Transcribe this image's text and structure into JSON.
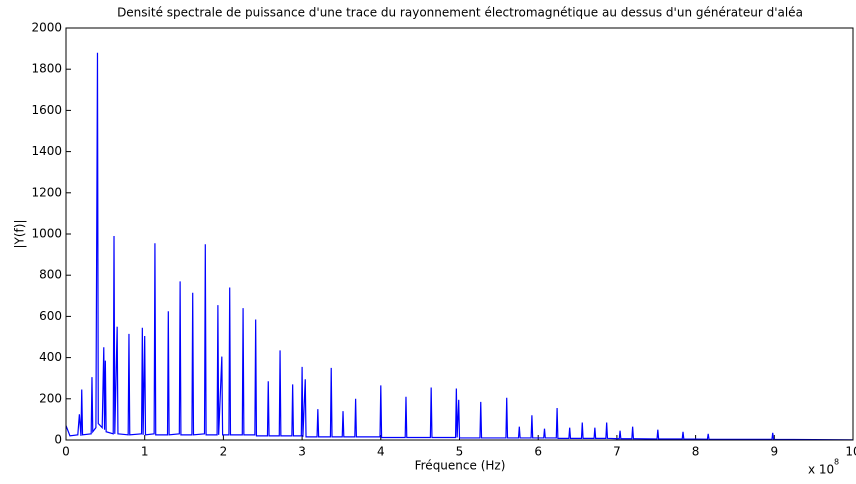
{
  "chart_data": {
    "type": "line",
    "title": "Densité spectrale de puissance d'une trace du rayonnement électromagnétique au dessus d'un générateur d'aléa",
    "xlabel": "Fréquence (Hz)",
    "ylabel": "|Y(f)|",
    "x_multiplier": "x 10",
    "x_multiplier_exponent": "8",
    "color": "#0000ff",
    "xlim": [
      0,
      10
    ],
    "xticks": [
      0,
      1,
      2,
      3,
      4,
      5,
      6,
      7,
      8,
      9,
      10
    ],
    "ylim": [
      0,
      2000
    ],
    "yticks": [
      0,
      200,
      400,
      600,
      800,
      1000,
      1200,
      1400,
      1600,
      1800,
      2000
    ],
    "x": [
      0,
      0.05,
      0.15,
      0.17,
      0.19,
      0.2,
      0.21,
      0.32,
      0.33,
      0.34,
      0.38,
      0.4,
      0.41,
      0.46,
      0.48,
      0.49,
      0.5,
      0.51,
      0.6,
      0.61,
      0.62,
      0.65,
      0.66,
      0.79,
      0.8,
      0.81,
      0.96,
      0.97,
      0.98,
      1.0,
      1.01,
      1.12,
      1.13,
      1.14,
      1.29,
      1.3,
      1.31,
      1.44,
      1.45,
      1.46,
      1.6,
      1.61,
      1.62,
      1.76,
      1.77,
      1.78,
      1.92,
      1.93,
      1.94,
      1.98,
      1.99,
      2.07,
      2.08,
      2.09,
      2.24,
      2.25,
      2.26,
      2.4,
      2.41,
      2.42,
      2.56,
      2.57,
      2.58,
      2.71,
      2.72,
      2.73,
      2.87,
      2.88,
      2.89,
      2.99,
      3.0,
      3.01,
      3.04,
      3.05,
      3.19,
      3.2,
      3.21,
      3.36,
      3.37,
      3.38,
      3.51,
      3.52,
      3.53,
      3.67,
      3.68,
      3.69,
      3.99,
      4.0,
      4.01,
      4.31,
      4.32,
      4.33,
      4.63,
      4.64,
      4.65,
      4.95,
      4.96,
      4.97,
      4.99,
      5.0,
      5.26,
      5.27,
      5.28,
      5.59,
      5.6,
      5.61,
      5.75,
      5.76,
      5.77,
      5.91,
      5.92,
      5.93,
      6.07,
      6.08,
      6.09,
      6.23,
      6.24,
      6.25,
      6.39,
      6.4,
      6.41,
      6.55,
      6.56,
      6.57,
      6.71,
      6.72,
      6.73,
      6.86,
      6.87,
      6.88,
      7.03,
      7.04,
      7.05,
      7.19,
      7.2,
      7.21,
      7.51,
      7.52,
      7.53,
      7.83,
      7.84,
      7.85,
      8.15,
      8.16,
      8.17,
      8.97,
      8.98,
      8.99,
      9.5,
      10
    ],
    "values": [
      70,
      20,
      25,
      125,
      20,
      245,
      25,
      30,
      305,
      40,
      60,
      1880,
      80,
      60,
      450,
      50,
      385,
      40,
      30,
      990,
      30,
      550,
      30,
      25,
      515,
      25,
      30,
      545,
      25,
      505,
      25,
      30,
      955,
      25,
      25,
      625,
      25,
      30,
      770,
      25,
      25,
      715,
      25,
      30,
      950,
      25,
      25,
      655,
      25,
      405,
      25,
      25,
      740,
      25,
      25,
      640,
      25,
      25,
      585,
      20,
      20,
      285,
      20,
      20,
      435,
      20,
      20,
      270,
      20,
      20,
      355,
      15,
      295,
      15,
      15,
      150,
      15,
      15,
      350,
      15,
      15,
      140,
      15,
      15,
      200,
      15,
      15,
      265,
      12,
      12,
      210,
      12,
      12,
      255,
      12,
      12,
      250,
      12,
      195,
      10,
      10,
      185,
      10,
      10,
      205,
      10,
      10,
      65,
      10,
      10,
      120,
      10,
      10,
      55,
      10,
      10,
      155,
      8,
      8,
      60,
      8,
      8,
      85,
      8,
      8,
      60,
      8,
      8,
      85,
      8,
      6,
      45,
      6,
      6,
      65,
      6,
      5,
      50,
      5,
      5,
      40,
      5,
      4,
      30,
      4,
      3,
      35,
      3,
      2,
      1
    ]
  }
}
